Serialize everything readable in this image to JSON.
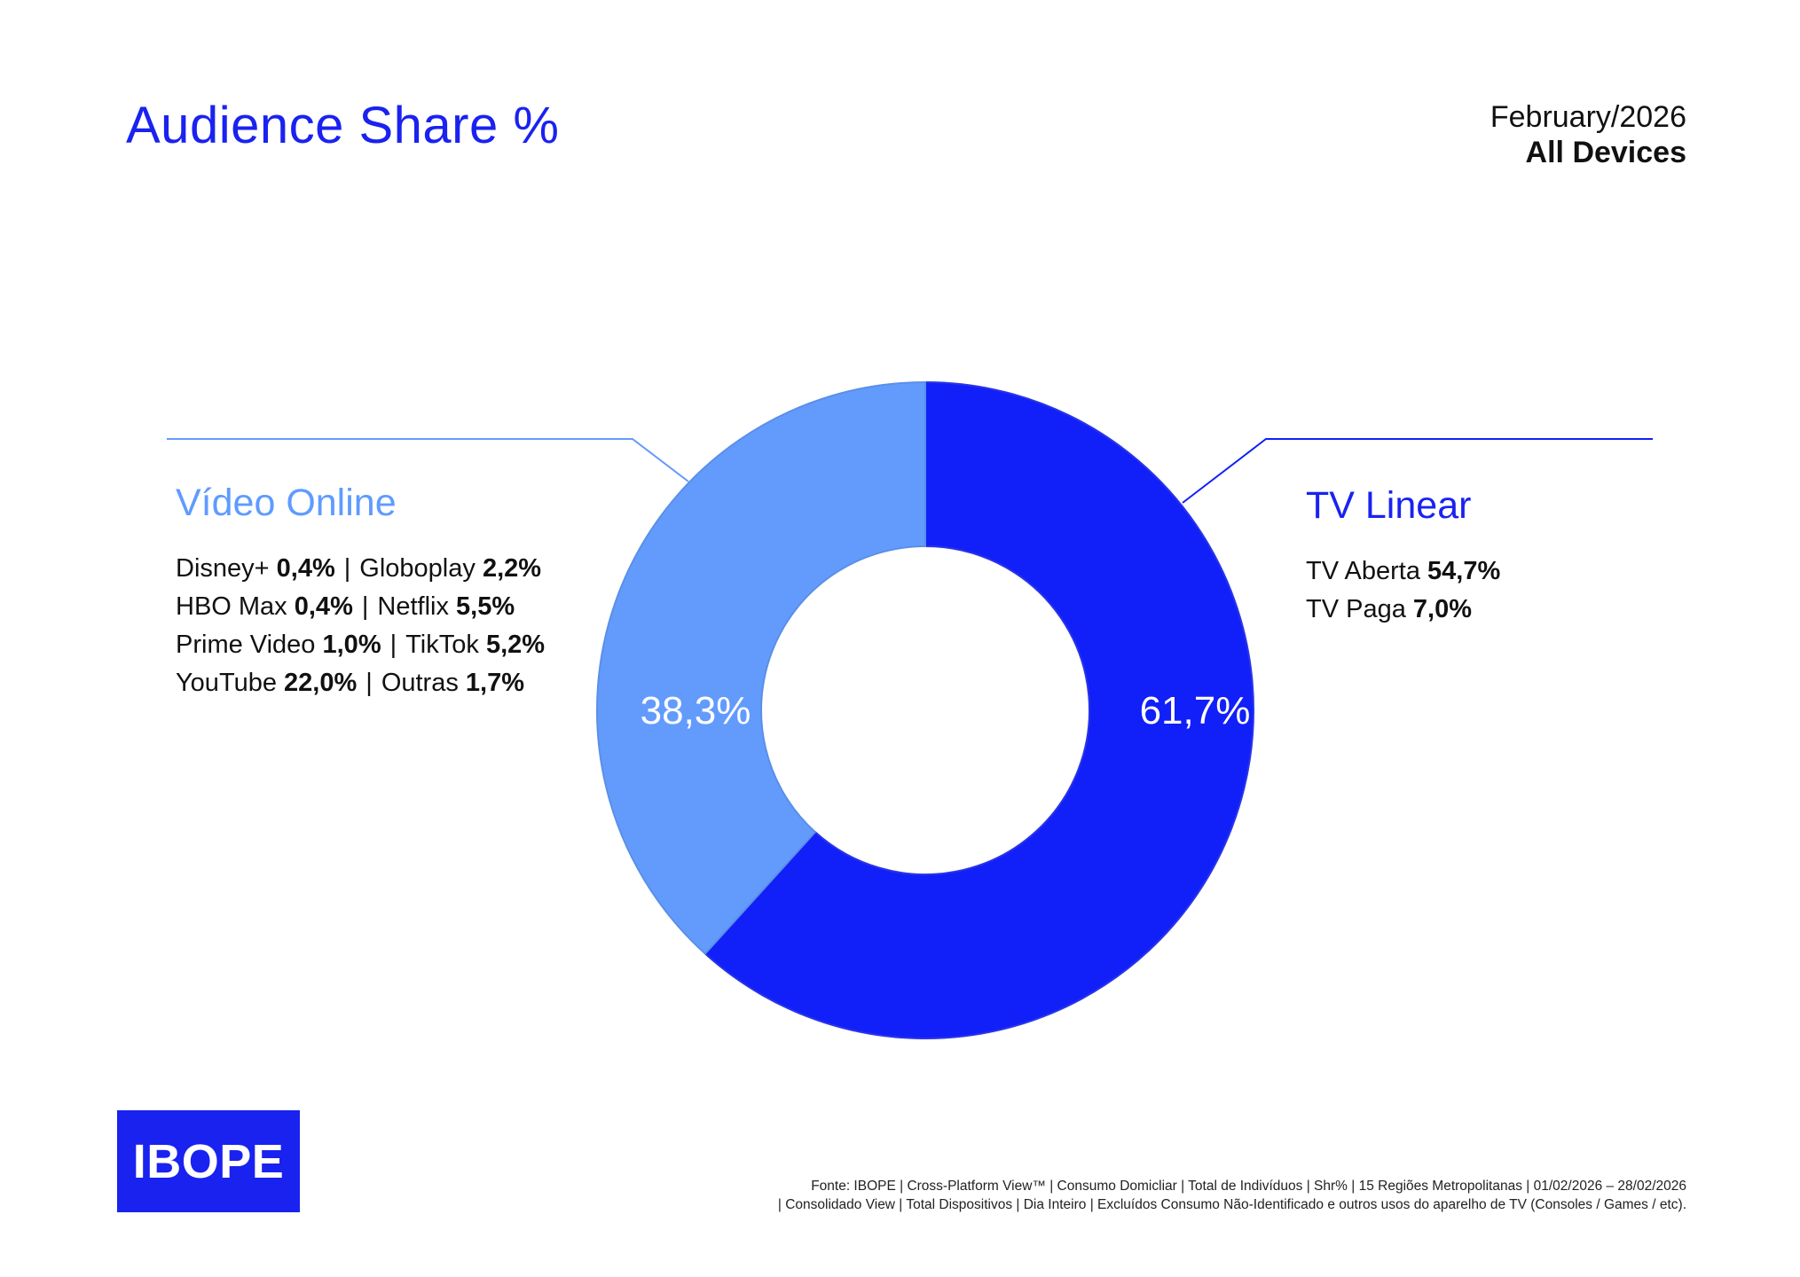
{
  "title": "Audience Share %",
  "period": "February/2026",
  "devices": "All Devices",
  "colors": {
    "title": "#1a22f0",
    "tv_linear": "#1120f8",
    "video_online": "#639bfd",
    "logo_bg": "#1a22f0"
  },
  "chart_data": {
    "type": "pie",
    "donut": true,
    "categories": [
      "TV Linear",
      "Vídeo Online"
    ],
    "values": [
      61.7,
      38.3
    ],
    "labels": [
      "61,7%",
      "38,3%"
    ]
  },
  "video_online": {
    "heading": "Vídeo Online",
    "rows": [
      [
        {
          "name": "Disney+",
          "value": "0,4%"
        },
        {
          "name": "Globoplay",
          "value": "2,2%"
        }
      ],
      [
        {
          "name": "HBO Max",
          "value": "0,4%"
        },
        {
          "name": "Netflix",
          "value": "5,5%"
        }
      ],
      [
        {
          "name": "Prime Video",
          "value": "1,0%"
        },
        {
          "name": "TikTok",
          "value": "5,2%"
        }
      ],
      [
        {
          "name": "YouTube",
          "value": "22,0%"
        },
        {
          "name": "Outras",
          "value": "1,7%"
        }
      ]
    ]
  },
  "tv_linear": {
    "heading": "TV Linear",
    "rows": [
      [
        {
          "name": "TV Aberta",
          "value": "54,7%"
        }
      ],
      [
        {
          "name": "TV Paga",
          "value": "7,0%"
        }
      ]
    ]
  },
  "separator": "|",
  "logo": "IBOPE",
  "source": {
    "line1": "Fonte: IBOPE | Cross-Platform View™ | Consumo Domicliar | Total de Indivíduos | Shr% | 15 Regiões Metropolitanas | 01/02/2026 – 28/02/2026",
    "line2": "| Consolidado View | Total Dispositivos | Dia Inteiro | Excluídos Consumo Não-Identificado e outros usos do aparelho de TV (Consoles / Games / etc)."
  }
}
